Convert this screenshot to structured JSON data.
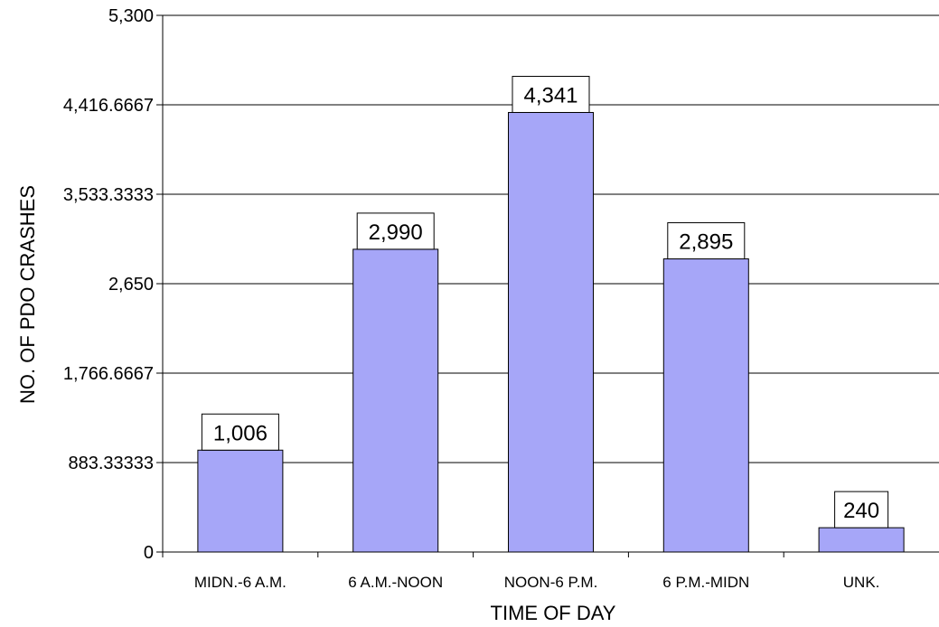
{
  "chart_data": {
    "type": "bar",
    "title": "",
    "xlabel": "TIME OF DAY",
    "ylabel": "NO. OF PDO CRASHES",
    "categories": [
      "MIDN.-6 A.M.",
      "6 A.M.-NOON",
      "NOON-6 P.M.",
      "6 P.M.-MIDN",
      "UNK."
    ],
    "values": [
      1006,
      2990,
      4341,
      2895,
      240
    ],
    "value_labels": [
      "1,006",
      "2,990",
      "4,341",
      "2,895",
      "240"
    ],
    "ylim": [
      0,
      5300
    ],
    "yticks": [
      0,
      883.33333,
      1766.6667,
      2650,
      3533.3333,
      4416.6667,
      5300
    ],
    "ytick_labels": [
      "0",
      "883.33333",
      "1,766.6667",
      "2,650",
      "3,533.3333",
      "4,416.6667",
      "5,300"
    ],
    "grid": true,
    "legend": "none",
    "bar_color": "#a6a6f8"
  }
}
